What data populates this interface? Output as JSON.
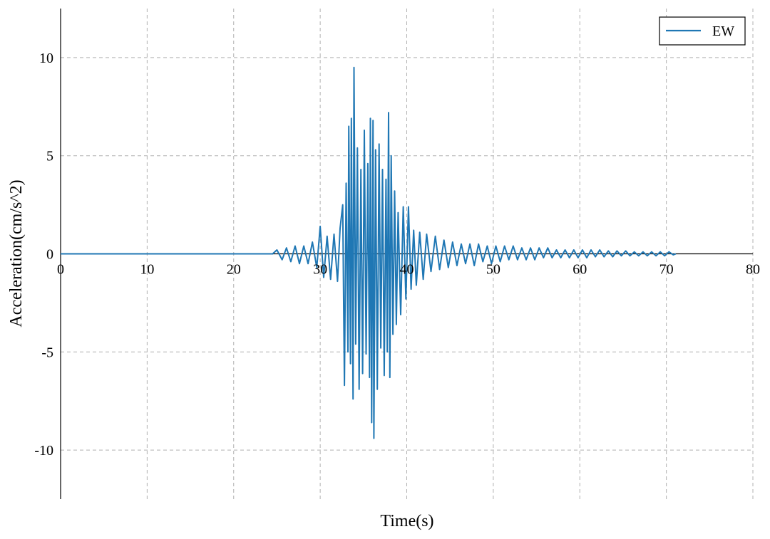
{
  "chart_data": {
    "type": "line",
    "title": "",
    "xlabel": "Time(s)",
    "ylabel": "Acceleration(cm/s^2)",
    "xlim": [
      0,
      80
    ],
    "ylim": [
      -12.5,
      12.5
    ],
    "x_ticks": [
      0,
      10,
      20,
      30,
      40,
      50,
      60,
      70,
      80
    ],
    "y_ticks": [
      -10,
      -5,
      0,
      5,
      10
    ],
    "grid": true,
    "legend_position": "top-right",
    "series": [
      {
        "name": "EW",
        "color": "#1f77b4",
        "points": [
          [
            0,
            0
          ],
          [
            24.5,
            0
          ],
          [
            25,
            0.2
          ],
          [
            25.6,
            -0.3
          ],
          [
            26.1,
            0.3
          ],
          [
            26.6,
            -0.4
          ],
          [
            27.1,
            0.4
          ],
          [
            27.6,
            -0.5
          ],
          [
            28.1,
            0.4
          ],
          [
            28.6,
            -0.5
          ],
          [
            29.1,
            0.6
          ],
          [
            29.6,
            -0.7
          ],
          [
            30,
            1.4
          ],
          [
            30.4,
            -1.2
          ],
          [
            30.8,
            0.9
          ],
          [
            31.2,
            -1.3
          ],
          [
            31.6,
            1.0
          ],
          [
            32,
            -1.4
          ],
          [
            32.3,
            1.3
          ],
          [
            32.6,
            2.5
          ],
          [
            32.8,
            -6.7
          ],
          [
            33.0,
            3.6
          ],
          [
            33.2,
            -5.0
          ],
          [
            33.3,
            6.5
          ],
          [
            33.5,
            -5.6
          ],
          [
            33.6,
            6.9
          ],
          [
            33.8,
            -7.4
          ],
          [
            33.9,
            9.5
          ],
          [
            34.1,
            -4.6
          ],
          [
            34.3,
            5.4
          ],
          [
            34.5,
            -6.9
          ],
          [
            34.7,
            4.3
          ],
          [
            34.9,
            -6.1
          ],
          [
            35.1,
            6.3
          ],
          [
            35.3,
            -5.1
          ],
          [
            35.5,
            4.6
          ],
          [
            35.7,
            -6.3
          ],
          [
            35.8,
            6.9
          ],
          [
            35.95,
            -8.6
          ],
          [
            36.1,
            6.8
          ],
          [
            36.2,
            -9.4
          ],
          [
            36.4,
            5.3
          ],
          [
            36.6,
            -6.9
          ],
          [
            36.8,
            5.6
          ],
          [
            37.0,
            -4.8
          ],
          [
            37.2,
            4.3
          ],
          [
            37.4,
            -6.2
          ],
          [
            37.6,
            3.8
          ],
          [
            37.75,
            -5.0
          ],
          [
            37.9,
            7.2
          ],
          [
            38.05,
            -6.3
          ],
          [
            38.2,
            5.0
          ],
          [
            38.4,
            -4.1
          ],
          [
            38.6,
            3.2
          ],
          [
            38.8,
            -3.6
          ],
          [
            39.0,
            2.1
          ],
          [
            39.3,
            -3.1
          ],
          [
            39.6,
            2.4
          ],
          [
            39.9,
            -2.3
          ],
          [
            40.2,
            2.4
          ],
          [
            40.5,
            -1.8
          ],
          [
            40.8,
            1.2
          ],
          [
            41.1,
            -1.6
          ],
          [
            41.5,
            1.1
          ],
          [
            41.9,
            -1.3
          ],
          [
            42.3,
            1.0
          ],
          [
            42.8,
            -0.9
          ],
          [
            43.3,
            0.9
          ],
          [
            43.8,
            -0.8
          ],
          [
            44.3,
            0.7
          ],
          [
            44.8,
            -0.7
          ],
          [
            45.3,
            0.6
          ],
          [
            45.8,
            -0.6
          ],
          [
            46.3,
            0.5
          ],
          [
            46.8,
            -0.5
          ],
          [
            47.3,
            0.5
          ],
          [
            47.8,
            -0.6
          ],
          [
            48.3,
            0.5
          ],
          [
            48.8,
            -0.4
          ],
          [
            49.3,
            0.4
          ],
          [
            49.8,
            -0.5
          ],
          [
            50.3,
            0.4
          ],
          [
            50.8,
            -0.4
          ],
          [
            51.3,
            0.4
          ],
          [
            51.8,
            -0.3
          ],
          [
            52.3,
            0.4
          ],
          [
            52.8,
            -0.3
          ],
          [
            53.3,
            0.3
          ],
          [
            53.8,
            -0.3
          ],
          [
            54.3,
            0.3
          ],
          [
            54.8,
            -0.3
          ],
          [
            55.3,
            0.3
          ],
          [
            55.8,
            -0.2
          ],
          [
            56.3,
            0.3
          ],
          [
            56.8,
            -0.2
          ],
          [
            57.3,
            0.2
          ],
          [
            57.8,
            -0.2
          ],
          [
            58.3,
            0.2
          ],
          [
            58.8,
            -0.2
          ],
          [
            59.3,
            0.2
          ],
          [
            59.8,
            -0.2
          ],
          [
            60.3,
            0.2
          ],
          [
            60.8,
            -0.2
          ],
          [
            61.3,
            0.2
          ],
          [
            61.8,
            -0.15
          ],
          [
            62.3,
            0.2
          ],
          [
            62.8,
            -0.15
          ],
          [
            63.3,
            0.15
          ],
          [
            63.8,
            -0.15
          ],
          [
            64.3,
            0.15
          ],
          [
            64.8,
            -0.1
          ],
          [
            65.3,
            0.15
          ],
          [
            65.8,
            -0.1
          ],
          [
            66.3,
            0.1
          ],
          [
            66.8,
            -0.1
          ],
          [
            67.3,
            0.1
          ],
          [
            67.8,
            -0.1
          ],
          [
            68.3,
            0.1
          ],
          [
            68.8,
            -0.1
          ],
          [
            69.3,
            0.1
          ],
          [
            69.8,
            -0.1
          ],
          [
            70.3,
            0.1
          ],
          [
            70.8,
            -0.05
          ],
          [
            71.1,
            0
          ]
        ]
      }
    ]
  }
}
